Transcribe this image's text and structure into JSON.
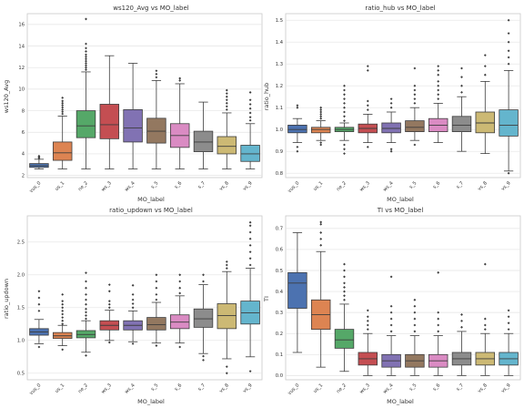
{
  "chart_data": [
    {
      "type": "box",
      "title": "ws120_Avg vs MO_label",
      "xlabel": "MO_label",
      "ylabel": "ws120_Avg",
      "categories": [
        "vus_0",
        "us_1",
        "ne_2",
        "ws_3",
        "ws_4",
        "s_5",
        "s_6",
        "s_7",
        "vs_8",
        "vs_9"
      ],
      "colors": [
        "#4c72b0",
        "#dd8452",
        "#55a868",
        "#c44e52",
        "#8172b3",
        "#937860",
        "#da8bc3",
        "#8c8c8c",
        "#ccb974",
        "#64b5cd"
      ],
      "ylim": [
        1.8,
        17
      ],
      "yticks": [
        2,
        4,
        6,
        8,
        10,
        12,
        14,
        16
      ],
      "boxes": [
        {
          "min": 2.6,
          "q1": 2.75,
          "median": 2.9,
          "q3": 3.1,
          "max": 3.5,
          "outliers": [
            3.6,
            3.7,
            3.8
          ]
        },
        {
          "min": 2.6,
          "q1": 3.4,
          "median": 4.1,
          "q3": 5.1,
          "max": 7.5,
          "outliers": [
            7.7,
            7.9,
            8.1,
            8.3,
            8.5,
            8.7,
            8.9,
            9.2
          ]
        },
        {
          "min": 2.6,
          "q1": 5.5,
          "median": 6.6,
          "q3": 8.0,
          "max": 11.6,
          "outliers": [
            11.8,
            12.0,
            12.2,
            12.4,
            12.6,
            12.8,
            13.0,
            13.2,
            13.5,
            13.8,
            14.2,
            16.5
          ]
        },
        {
          "min": 2.6,
          "q1": 5.4,
          "median": 6.7,
          "q3": 8.6,
          "max": 13.1,
          "outliers": []
        },
        {
          "min": 2.6,
          "q1": 5.1,
          "median": 6.4,
          "q3": 8.1,
          "max": 12.4,
          "outliers": []
        },
        {
          "min": 2.6,
          "q1": 5.0,
          "median": 6.1,
          "q3": 7.3,
          "max": 10.8,
          "outliers": [
            11.1,
            11.4,
            11.7
          ]
        },
        {
          "min": 2.6,
          "q1": 4.6,
          "median": 5.7,
          "q3": 6.8,
          "max": 10.5,
          "outliers": [
            10.8,
            11.0
          ]
        },
        {
          "min": 2.6,
          "q1": 4.2,
          "median": 5.1,
          "q3": 6.1,
          "max": 8.8,
          "outliers": []
        },
        {
          "min": 2.6,
          "q1": 4.0,
          "median": 4.7,
          "q3": 5.6,
          "max": 7.8,
          "outliers": [
            8.1,
            8.4,
            8.7,
            9.0,
            9.3,
            9.6,
            9.9
          ]
        },
        {
          "min": 2.6,
          "q1": 3.3,
          "median": 4.0,
          "q3": 4.8,
          "max": 6.8,
          "outliers": [
            7.1,
            7.4,
            7.8,
            8.2,
            8.6,
            9.0,
            9.7
          ]
        }
      ]
    },
    {
      "type": "box",
      "title": "ratio_hub vs MO_label",
      "xlabel": "MO_label",
      "ylabel": "ratio_hub",
      "categories": [
        "vus_0",
        "us_1",
        "ne_2",
        "ws_3",
        "ws_4",
        "s_5",
        "s_6",
        "s_7",
        "vs_8",
        "vs_9"
      ],
      "colors": [
        "#4c72b0",
        "#dd8452",
        "#55a868",
        "#c44e52",
        "#8172b3",
        "#937860",
        "#da8bc3",
        "#8c8c8c",
        "#ccb974",
        "#64b5cd"
      ],
      "ylim": [
        0.78,
        1.53
      ],
      "yticks": [
        0.8,
        0.9,
        1.0,
        1.1,
        1.2,
        1.3,
        1.4,
        1.5
      ],
      "boxes": [
        {
          "min": 0.94,
          "q1": 0.985,
          "median": 1.0,
          "q3": 1.02,
          "max": 1.05,
          "outliers": [
            0.9,
            0.92,
            1.1,
            1.11
          ]
        },
        {
          "min": 0.95,
          "q1": 0.985,
          "median": 1.0,
          "q3": 1.01,
          "max": 1.04,
          "outliers": [
            0.93,
            0.94,
            1.05,
            1.06,
            1.07,
            1.08,
            1.09,
            1.1
          ]
        },
        {
          "min": 0.95,
          "q1": 0.99,
          "median": 1.0,
          "q3": 1.01,
          "max": 1.03,
          "outliers": [
            0.89,
            0.91,
            0.93,
            1.04,
            1.06,
            1.08,
            1.1,
            1.12,
            1.14,
            1.16,
            1.18,
            1.2
          ]
        },
        {
          "min": 0.94,
          "q1": 0.985,
          "median": 1.005,
          "q3": 1.025,
          "max": 1.07,
          "outliers": [
            0.92,
            1.09,
            1.11,
            1.13,
            1.27,
            1.29
          ]
        },
        {
          "min": 0.94,
          "q1": 0.985,
          "median": 1.005,
          "q3": 1.03,
          "max": 1.08,
          "outliers": [
            0.9,
            0.91,
            1.1,
            1.12,
            1.14
          ]
        },
        {
          "min": 0.95,
          "q1": 0.99,
          "median": 1.01,
          "q3": 1.04,
          "max": 1.1,
          "outliers": [
            0.93,
            1.12,
            1.14,
            1.16,
            1.18,
            1.2,
            1.28
          ]
        },
        {
          "min": 0.94,
          "q1": 0.99,
          "median": 1.02,
          "q3": 1.05,
          "max": 1.12,
          "outliers": [
            1.14,
            1.16,
            1.18,
            1.2,
            1.22,
            1.25,
            1.27,
            1.29
          ]
        },
        {
          "min": 0.9,
          "q1": 0.99,
          "median": 1.02,
          "q3": 1.06,
          "max": 1.15,
          "outliers": [
            1.17,
            1.2,
            1.24,
            1.28
          ]
        },
        {
          "min": 0.89,
          "q1": 0.985,
          "median": 1.03,
          "q3": 1.08,
          "max": 1.22,
          "outliers": [
            1.25,
            1.29,
            1.34
          ]
        },
        {
          "min": 0.81,
          "q1": 0.97,
          "median": 1.02,
          "q3": 1.09,
          "max": 1.27,
          "outliers": [
            0.8,
            1.3,
            1.33,
            1.36,
            1.4,
            1.44,
            1.5
          ]
        }
      ]
    },
    {
      "type": "box",
      "title": "ratio_updown vs MO_label",
      "xlabel": "MO_label",
      "ylabel": "ratio_updown",
      "categories": [
        "vus_0",
        "us_1",
        "ne_2",
        "ws_3",
        "ws_4",
        "s_5",
        "s_6",
        "s_7",
        "vs_8",
        "vs_9"
      ],
      "colors": [
        "#4c72b0",
        "#dd8452",
        "#55a868",
        "#c44e52",
        "#8172b3",
        "#937860",
        "#da8bc3",
        "#8c8c8c",
        "#ccb974",
        "#64b5cd"
      ],
      "ylim": [
        0.4,
        2.9
      ],
      "yticks": [
        0.5,
        1.0,
        1.5,
        2.0,
        2.5
      ],
      "boxes": [
        {
          "min": 0.95,
          "q1": 1.08,
          "median": 1.13,
          "q3": 1.18,
          "max": 1.32,
          "outliers": [
            0.9,
            1.45,
            1.55,
            1.65,
            1.75
          ]
        },
        {
          "min": 0.92,
          "q1": 1.03,
          "median": 1.07,
          "q3": 1.12,
          "max": 1.23,
          "outliers": [
            0.86,
            1.25,
            1.3,
            1.35,
            1.4,
            1.45,
            1.5,
            1.55,
            1.6,
            1.7
          ]
        },
        {
          "min": 0.82,
          "q1": 1.04,
          "median": 1.09,
          "q3": 1.15,
          "max": 1.3,
          "outliers": [
            0.77,
            1.33,
            1.38,
            1.43,
            1.48,
            1.55,
            1.62,
            1.7,
            1.8,
            1.9,
            2.03
          ]
        },
        {
          "min": 1.0,
          "q1": 1.16,
          "median": 1.23,
          "q3": 1.3,
          "max": 1.46,
          "outliers": [
            0.97,
            1.5,
            1.55,
            1.6,
            1.75,
            1.85
          ]
        },
        {
          "min": 0.98,
          "q1": 1.16,
          "median": 1.23,
          "q3": 1.3,
          "max": 1.45,
          "outliers": [
            0.95,
            1.5,
            1.56,
            1.62,
            1.7,
            1.84
          ]
        },
        {
          "min": 0.96,
          "q1": 1.16,
          "median": 1.24,
          "q3": 1.35,
          "max": 1.58,
          "outliers": [
            0.92,
            1.62,
            1.7,
            1.8,
            1.9,
            2.0
          ]
        },
        {
          "min": 0.96,
          "q1": 1.18,
          "median": 1.28,
          "q3": 1.39,
          "max": 1.68,
          "outliers": [
            0.9,
            1.72,
            1.8,
            1.9,
            2.0
          ]
        },
        {
          "min": 0.8,
          "q1": 1.2,
          "median": 1.33,
          "q3": 1.48,
          "max": 1.85,
          "outliers": [
            0.7,
            0.76,
            1.9,
            2.0
          ]
        },
        {
          "min": 0.72,
          "q1": 1.18,
          "median": 1.38,
          "q3": 1.56,
          "max": 2.05,
          "outliers": [
            0.5,
            0.6,
            2.1,
            2.15,
            2.2
          ]
        },
        {
          "min": 0.75,
          "q1": 1.25,
          "median": 1.42,
          "q3": 1.6,
          "max": 2.1,
          "outliers": [
            0.53,
            2.15,
            2.25,
            2.35,
            2.45,
            2.55,
            2.65,
            2.75,
            2.8
          ]
        }
      ]
    },
    {
      "type": "box",
      "title": "TI vs MO_label",
      "xlabel": "MO_label",
      "ylabel": "TI",
      "categories": [
        "vus_0",
        "us_1",
        "ne_2",
        "ws_3",
        "ws_4",
        "s_5",
        "s_6",
        "s_7",
        "vs_8",
        "vs_9"
      ],
      "colors": [
        "#4c72b0",
        "#dd8452",
        "#55a868",
        "#c44e52",
        "#8172b3",
        "#937860",
        "#da8bc3",
        "#8c8c8c",
        "#ccb974",
        "#64b5cd"
      ],
      "ylim": [
        -0.02,
        0.76
      ],
      "yticks": [
        0.0,
        0.1,
        0.2,
        0.3,
        0.4,
        0.5,
        0.6,
        0.7
      ],
      "boxes": [
        {
          "min": 0.11,
          "q1": 0.32,
          "median": 0.44,
          "q3": 0.49,
          "max": 0.68,
          "outliers": []
        },
        {
          "min": 0.04,
          "q1": 0.22,
          "median": 0.29,
          "q3": 0.36,
          "max": 0.59,
          "outliers": [
            0.62,
            0.65,
            0.68,
            0.72,
            0.73
          ]
        },
        {
          "min": 0.02,
          "q1": 0.13,
          "median": 0.17,
          "q3": 0.22,
          "max": 0.34,
          "outliers": [
            0.36,
            0.38,
            0.4,
            0.42,
            0.44,
            0.47,
            0.5,
            0.53
          ]
        },
        {
          "min": 0.0,
          "q1": 0.05,
          "median": 0.08,
          "q3": 0.11,
          "max": 0.2,
          "outliers": [
            0.22,
            0.24,
            0.26,
            0.28,
            0.31
          ]
        },
        {
          "min": 0.0,
          "q1": 0.04,
          "median": 0.07,
          "q3": 0.1,
          "max": 0.19,
          "outliers": [
            0.21,
            0.24,
            0.27,
            0.3,
            0.33,
            0.47
          ]
        },
        {
          "min": 0.0,
          "q1": 0.04,
          "median": 0.07,
          "q3": 0.1,
          "max": 0.19,
          "outliers": [
            0.21,
            0.24,
            0.27,
            0.3,
            0.33,
            0.36
          ]
        },
        {
          "min": 0.0,
          "q1": 0.04,
          "median": 0.07,
          "q3": 0.1,
          "max": 0.19,
          "outliers": [
            0.21,
            0.24,
            0.27,
            0.3,
            0.49
          ]
        },
        {
          "min": 0.0,
          "q1": 0.05,
          "median": 0.08,
          "q3": 0.11,
          "max": 0.21,
          "outliers": [
            0.23,
            0.26,
            0.29
          ]
        },
        {
          "min": 0.0,
          "q1": 0.05,
          "median": 0.08,
          "q3": 0.11,
          "max": 0.2,
          "outliers": [
            0.22,
            0.24,
            0.27,
            0.53
          ]
        },
        {
          "min": 0.0,
          "q1": 0.05,
          "median": 0.08,
          "q3": 0.11,
          "max": 0.2,
          "outliers": [
            0.22,
            0.25,
            0.28,
            0.31
          ]
        }
      ]
    }
  ]
}
